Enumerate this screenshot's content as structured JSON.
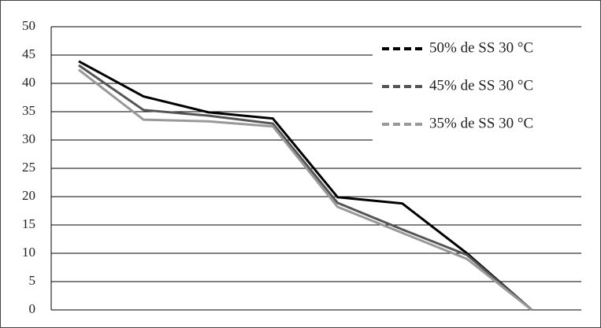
{
  "chart_data": {
    "type": "line",
    "categories": [
      null,
      null,
      null,
      null,
      null,
      null,
      null,
      null
    ],
    "series": [
      {
        "name": "50% de SS 30 °C",
        "color": "#000000",
        "values": [
          43.9,
          37.7,
          34.9,
          33.8,
          19.9,
          18.8,
          10,
          0
        ]
      },
      {
        "name": "45% de SS 30 °C",
        "color": "#555555",
        "values": [
          43.2,
          35.3,
          34.3,
          32.9,
          18.9,
          14.2,
          9.7,
          0
        ]
      },
      {
        "name": "35% de SS 30 °C",
        "color": "#999999",
        "values": [
          42.4,
          33.6,
          33.3,
          32.4,
          18.2,
          13.6,
          9,
          0
        ]
      }
    ],
    "ylim": [
      0,
      50
    ],
    "yticks": [
      0,
      5,
      10,
      15,
      20,
      25,
      30,
      35,
      40,
      45,
      50
    ],
    "grid": true
  }
}
